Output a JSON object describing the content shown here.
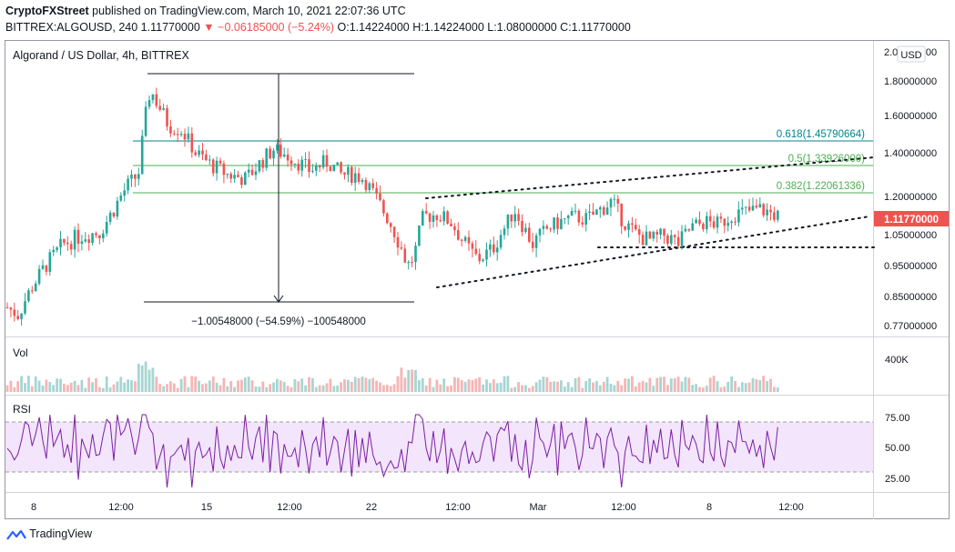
{
  "header": {
    "author": "CryptoFXStreet",
    "published": "published on TradingView.com, March 10, 2021 22:07:36 UTC",
    "symbol": "BITTREX:ALGOUSD, 240",
    "last": "1.11770000",
    "change": "−0.06185000 (−5.24%)",
    "ohlc": "O:1.14224000 H:1.14224000 L:1.08000000 C:1.11770000"
  },
  "chart": {
    "title": "Algorand / US Dollar, 4h, BITTREX",
    "currency": "USD",
    "price_label": "1.11770000",
    "vol_label": "Vol",
    "vol_tick": "400K",
    "rsi_label": "RSI",
    "measure_label": "−1.00548000 (−54.59%) −100548000",
    "fib_labels": [
      "0.618(1.45790664)",
      "0.5(1.33926000)",
      "0.382(1.22061336)"
    ],
    "footer": "TradingView"
  },
  "chart_data": {
    "type": "candlestick",
    "title": "Algorand / US Dollar, 4h, BITTREX",
    "price_axis": [
      "2.00000000",
      "1.80000000",
      "1.60000000",
      "1.40000000",
      "1.20000000",
      "1.05000000",
      "0.95000000",
      "0.85000000",
      "0.77000000"
    ],
    "rsi_axis": [
      "75.00",
      "50.00",
      "25.00"
    ],
    "time_axis": [
      "8",
      "12:00",
      "15",
      "12:00",
      "22",
      "12:00",
      "Mar",
      "12:00",
      "8",
      "12:00"
    ],
    "ohlc": {
      "open": 1.14224,
      "high": 1.14224,
      "low": 1.08,
      "close": 1.1177
    },
    "fibonacci": [
      {
        "level": 0.618,
        "price": 1.45790664
      },
      {
        "level": 0.5,
        "price": 1.33926
      },
      {
        "level": 0.382,
        "price": 1.22061336
      }
    ],
    "price_range_measure": {
      "change": -1.00548,
      "percent": -54.59
    },
    "rsi_bands": [
      70,
      30
    ],
    "colors": {
      "up": "#26a69a",
      "down": "#ef5350",
      "rsi_line": "#7b1fa2",
      "rsi_band": "#e1c4f7",
      "price_tag": "#ef5350",
      "fib_0618": "#00838f",
      "fib_05_0382": "#4caf50"
    }
  }
}
